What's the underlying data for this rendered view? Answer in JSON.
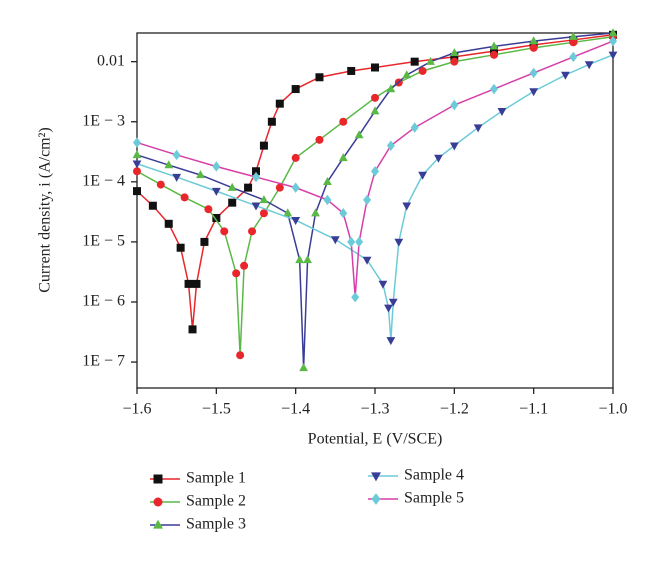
{
  "chart_data": {
    "type": "line",
    "log_y": true,
    "x_label": "Potential, E (V/SCE)",
    "y_label": "Current density, i (A/cm²)",
    "xlim": [
      -1.6,
      -1.0
    ],
    "xticks": [
      {
        "value": -1.6,
        "label": "−1.6"
      },
      {
        "value": -1.5,
        "label": "−1.5"
      },
      {
        "value": -1.4,
        "label": "−1.4"
      },
      {
        "value": -1.3,
        "label": "−1.3"
      },
      {
        "value": -1.2,
        "label": "−1.2"
      },
      {
        "value": -1.1,
        "label": "−1.1"
      },
      {
        "value": -1.0,
        "label": "−1.0"
      }
    ],
    "ylim": [
      3.7e-08,
      0.03
    ],
    "yticks": [
      0.01,
      {
        "value": 0.001,
        "label": "1E − 3"
      },
      {
        "value": 0.0001,
        "label": "1E − 4"
      },
      {
        "value": 1e-05,
        "label": "1E − 5"
      },
      {
        "value": 1e-06,
        "label": "1E − 6"
      },
      {
        "value": 1e-07,
        "label": "1E − 7"
      }
    ],
    "series": [
      {
        "name": "Sample 1",
        "color": "#111111",
        "line_color": "#e8262b",
        "marker": "square",
        "x": [
          -1.6,
          -1.58,
          -1.56,
          -1.545,
          -1.535,
          -1.53,
          -1.525,
          -1.515,
          -1.5,
          -1.48,
          -1.46,
          -1.45,
          -1.44,
          -1.43,
          -1.42,
          -1.4,
          -1.37,
          -1.33,
          -1.3,
          -1.25,
          -1.2,
          -1.15,
          -1.1,
          -1.05,
          -1.0
        ],
        "values": [
          7e-05,
          4e-05,
          2e-05,
          8e-06,
          2e-06,
          3.5e-07,
          2e-06,
          1e-05,
          2.5e-05,
          4.5e-05,
          8e-05,
          0.00015,
          0.0004,
          0.001,
          0.002,
          0.0035,
          0.0055,
          0.007,
          0.008,
          0.01,
          0.012,
          0.015,
          0.019,
          0.023,
          0.028
        ]
      },
      {
        "name": "Sample 2",
        "color": "#e8262b",
        "line_color": "#5ab946",
        "marker": "circle",
        "x": [
          -1.6,
          -1.57,
          -1.54,
          -1.51,
          -1.49,
          -1.475,
          -1.47,
          -1.465,
          -1.455,
          -1.44,
          -1.42,
          -1.4,
          -1.37,
          -1.34,
          -1.3,
          -1.27,
          -1.24,
          -1.2,
          -1.15,
          -1.1,
          -1.05,
          -1.0
        ],
        "values": [
          0.00015,
          9e-05,
          5.5e-05,
          3.5e-05,
          1.5e-05,
          3e-06,
          1.3e-07,
          4e-06,
          1.5e-05,
          3e-05,
          8e-05,
          0.00025,
          0.0005,
          0.001,
          0.0025,
          0.0045,
          0.007,
          0.01,
          0.013,
          0.017,
          0.021,
          0.026
        ]
      },
      {
        "name": "Sample 3",
        "color": "#5ab946",
        "line_color": "#3a3d96",
        "marker": "triangle",
        "x": [
          -1.6,
          -1.56,
          -1.52,
          -1.48,
          -1.44,
          -1.41,
          -1.395,
          -1.39,
          -1.385,
          -1.375,
          -1.36,
          -1.34,
          -1.32,
          -1.3,
          -1.28,
          -1.26,
          -1.23,
          -1.2,
          -1.15,
          -1.1,
          -1.05,
          -1.0
        ],
        "values": [
          0.00028,
          0.00019,
          0.00013,
          8e-05,
          5e-05,
          3e-05,
          5e-06,
          8e-08,
          5e-06,
          3e-05,
          0.0001,
          0.00025,
          0.0006,
          0.0015,
          0.0035,
          0.006,
          0.01,
          0.014,
          0.018,
          0.022,
          0.026,
          0.03
        ]
      },
      {
        "name": "Sample 4",
        "color": "#3a3d96",
        "line_color": "#6ccbd8",
        "marker": "triangle-down",
        "x": [
          -1.6,
          -1.55,
          -1.5,
          -1.45,
          -1.4,
          -1.35,
          -1.31,
          -1.29,
          -1.283,
          -1.28,
          -1.277,
          -1.27,
          -1.26,
          -1.24,
          -1.22,
          -1.2,
          -1.17,
          -1.14,
          -1.1,
          -1.06,
          -1.03,
          -1.0
        ],
        "values": [
          0.0002,
          0.00012,
          7e-05,
          4e-05,
          2.3e-05,
          1.1e-05,
          5e-06,
          2e-06,
          8e-07,
          2.3e-07,
          1e-06,
          1e-05,
          4e-05,
          0.00013,
          0.00025,
          0.0004,
          0.0008,
          0.0015,
          0.0032,
          0.006,
          0.009,
          0.013
        ]
      },
      {
        "name": "Sample 5",
        "color": "#6ccbd8",
        "line_color": "#d63fa8",
        "marker": "diamond",
        "x": [
          -1.6,
          -1.55,
          -1.5,
          -1.45,
          -1.4,
          -1.36,
          -1.34,
          -1.33,
          -1.325,
          -1.32,
          -1.31,
          -1.3,
          -1.28,
          -1.25,
          -1.2,
          -1.15,
          -1.1,
          -1.05,
          -1.0
        ],
        "values": [
          0.00045,
          0.00028,
          0.00018,
          0.00012,
          8e-05,
          5e-05,
          3e-05,
          1e-05,
          1.2e-06,
          1e-05,
          5e-05,
          0.00015,
          0.0004,
          0.0008,
          0.0019,
          0.0035,
          0.0065,
          0.012,
          0.022
        ]
      }
    ]
  }
}
